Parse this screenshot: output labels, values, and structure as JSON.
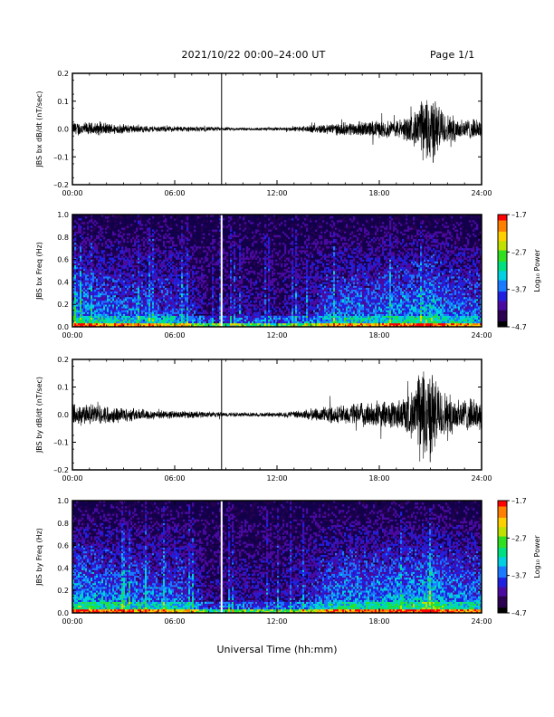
{
  "header": {
    "title": "2021/10/22  00:00–24:00 UT",
    "page": "Page 1/1"
  },
  "xaxis_title": "Universal Time (hh:mm)",
  "colors": {
    "trace": "#000000",
    "cursor_line": "#000000",
    "spectrogram_cursor": "#ffffff"
  },
  "colorbar": {
    "label": "Log₁₀ Power",
    "label_text": "Log₁₀ Power",
    "ticks": [
      "–1.7",
      "–2.7",
      "–3.7",
      "–4.7"
    ],
    "colormap": [
      "#000000",
      "#2a0050",
      "#4a0aa0",
      "#2020e0",
      "#1a7aff",
      "#00d0e0",
      "#00e080",
      "#30e020",
      "#c0e000",
      "#ffd000",
      "#ff8000",
      "#ff0000"
    ]
  },
  "chart_data": [
    {
      "type": "line",
      "name": "panel-bx-waveform",
      "ylabel": "JBS bx dB/dt (nT/sec)",
      "xlabel": "",
      "xlim": [
        0,
        24
      ],
      "ylim": [
        -0.2,
        0.2
      ],
      "yticks": [
        "0.2",
        "0.1",
        "0.0",
        "–0.1",
        "–0.2"
      ],
      "xticks": [
        "00:00",
        "06:00",
        "12:00",
        "18:00",
        "24:00"
      ],
      "cursor_hour": 8.75,
      "envelope_hours": [
        0,
        1,
        2,
        3,
        4,
        5,
        6,
        7,
        8,
        9,
        10,
        11,
        12,
        13,
        14,
        15,
        16,
        17,
        18,
        19,
        20,
        20.5,
        21,
        21.5,
        22,
        23,
        24
      ],
      "envelope_amp": [
        0.025,
        0.022,
        0.02,
        0.016,
        0.012,
        0.01,
        0.01,
        0.009,
        0.008,
        0.006,
        0.005,
        0.005,
        0.006,
        0.008,
        0.012,
        0.018,
        0.022,
        0.025,
        0.028,
        0.03,
        0.05,
        0.1,
        0.13,
        0.08,
        0.05,
        0.035,
        0.03
      ]
    },
    {
      "type": "heatmap",
      "name": "panel-bx-spectrogram",
      "ylabel": "JBS bx Freq (Hz)",
      "xlim": [
        0,
        24
      ],
      "ylim": [
        0,
        1.0
      ],
      "yticks": [
        "1.0",
        "0.8",
        "0.6",
        "0.4",
        "0.2",
        "0.0"
      ],
      "xticks": [
        "00:00",
        "06:00",
        "12:00",
        "18:00",
        "24:00"
      ],
      "zlim": [
        -4.7,
        -1.7
      ],
      "cursor_hour": 8.75,
      "activity_hours": [
        0,
        2,
        4,
        6,
        7,
        8,
        9,
        10,
        12,
        14,
        15,
        16,
        18,
        20,
        21,
        22,
        24
      ],
      "activity_level": [
        0.55,
        0.5,
        0.45,
        0.42,
        0.35,
        0.15,
        0.2,
        0.22,
        0.2,
        0.3,
        0.45,
        0.5,
        0.5,
        0.55,
        0.65,
        0.5,
        0.45
      ]
    },
    {
      "type": "line",
      "name": "panel-by-waveform",
      "ylabel": "JBS by dB/dt (nT/sec)",
      "xlabel": "",
      "xlim": [
        0,
        24
      ],
      "ylim": [
        -0.2,
        0.2
      ],
      "yticks": [
        "0.2",
        "0.1",
        "0.0",
        "–0.1",
        "–0.2"
      ],
      "xticks": [
        "00:00",
        "06:00",
        "12:00",
        "18:00",
        "24:00"
      ],
      "cursor_hour": 8.75,
      "envelope_hours": [
        0,
        1,
        2,
        3,
        4,
        5,
        6,
        7,
        8,
        9,
        10,
        11,
        12,
        13,
        14,
        15,
        16,
        17,
        18,
        19,
        20,
        20.5,
        21,
        21.5,
        22,
        23,
        24
      ],
      "envelope_amp": [
        0.04,
        0.035,
        0.03,
        0.025,
        0.02,
        0.015,
        0.013,
        0.012,
        0.01,
        0.008,
        0.007,
        0.007,
        0.008,
        0.012,
        0.02,
        0.028,
        0.035,
        0.04,
        0.045,
        0.05,
        0.08,
        0.18,
        0.16,
        0.1,
        0.07,
        0.055,
        0.05
      ]
    },
    {
      "type": "heatmap",
      "name": "panel-by-spectrogram",
      "ylabel": "JBS by Freq (Hz)",
      "xlim": [
        0,
        24
      ],
      "ylim": [
        0,
        1.0
      ],
      "yticks": [
        "1.0",
        "0.8",
        "0.6",
        "0.4",
        "0.2",
        "0.0"
      ],
      "xticks": [
        "00:00",
        "06:00",
        "12:00",
        "18:00",
        "24:00"
      ],
      "zlim": [
        -4.7,
        -1.7
      ],
      "cursor_hour": 8.75,
      "activity_hours": [
        0,
        2,
        4,
        6,
        7,
        8,
        9,
        10,
        12,
        14,
        15,
        16,
        18,
        20,
        21,
        22,
        24
      ],
      "activity_level": [
        0.6,
        0.55,
        0.5,
        0.48,
        0.4,
        0.18,
        0.22,
        0.25,
        0.22,
        0.35,
        0.5,
        0.55,
        0.55,
        0.6,
        0.7,
        0.55,
        0.5
      ]
    }
  ]
}
